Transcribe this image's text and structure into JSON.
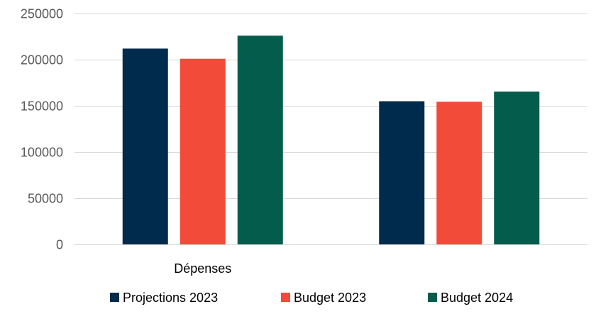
{
  "chart_data": {
    "type": "bar",
    "title": "",
    "xlabel": "",
    "ylabel": "",
    "categories": [
      "Dépenses",
      ""
    ],
    "series": [
      {
        "name": "Projections 2023",
        "color": "#002B4D",
        "values": [
          212000,
          155000
        ]
      },
      {
        "name": "Budget 2023",
        "color": "#F24B3A",
        "values": [
          201000,
          154500
        ]
      },
      {
        "name": "Budget 2024",
        "color": "#045C4C",
        "values": [
          226000,
          165500
        ]
      }
    ],
    "ylim": [
      0,
      250000
    ],
    "yticks": [
      "0",
      "50000",
      "100000",
      "150000",
      "200000",
      "250000"
    ],
    "grid": true,
    "legend_position": "bottom"
  }
}
